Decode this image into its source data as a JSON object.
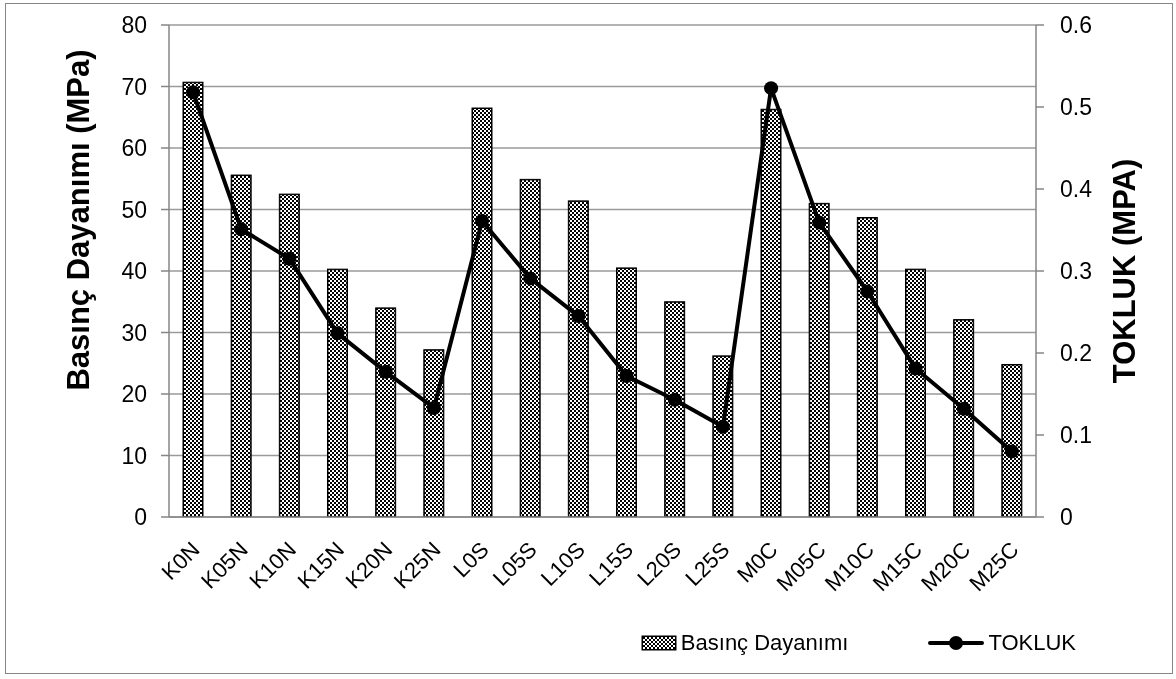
{
  "chart_data": {
    "type": "bar",
    "categories": [
      "K0N",
      "K05N",
      "K10N",
      "K15N",
      "K20N",
      "K25N",
      "L0S",
      "L05S",
      "L10S",
      "L15S",
      "L20S",
      "L25S",
      "M0C",
      "M05C",
      "M10C",
      "M15C",
      "M20C",
      "M25C"
    ],
    "series": [
      {
        "name": "Basınç Dayanımı",
        "color": "#000000",
        "values": [
          70.7,
          55.6,
          52.5,
          40.3,
          34.0,
          27.2,
          66.5,
          54.9,
          51.4,
          40.5,
          35.0,
          26.2,
          66.3,
          51.0,
          48.7,
          40.3,
          32.1,
          24.8
        ]
      },
      {
        "name": "TOKLUK",
        "type": "line",
        "axis": "y2",
        "color": "#000000",
        "marker": "circle",
        "line_style": "solid",
        "values": [
          0.518,
          0.351,
          0.315,
          0.224,
          0.177,
          0.133,
          0.361,
          0.291,
          0.245,
          0.172,
          0.143,
          0.11,
          0.523,
          0.359,
          0.275,
          0.181,
          0.132,
          0.08
        ]
      }
    ],
    "ylabel": "Basınç Dayanımı (MPa)",
    "y2label": "TOKLUK (MPA)",
    "ylim": [
      0,
      80
    ],
    "yticks": [
      0,
      10,
      20,
      30,
      40,
      50,
      60,
      70,
      80
    ],
    "y2lim": [
      0,
      0.6
    ],
    "y2ticks": [
      0,
      0.1,
      0.2,
      0.3,
      0.4,
      0.5,
      0.6
    ],
    "grid": "y",
    "legend": "bottom right"
  }
}
